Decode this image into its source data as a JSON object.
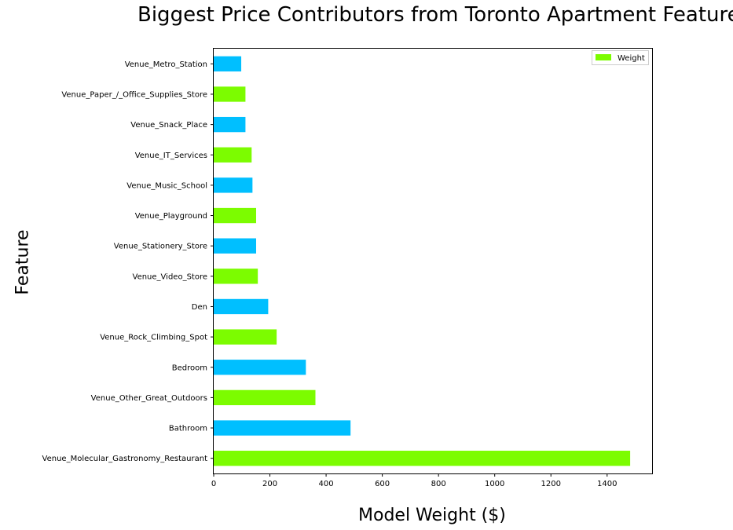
{
  "chart_data": {
    "type": "bar",
    "orientation": "horizontal",
    "title": "Biggest Price Contributors from Toronto Apartment Features",
    "xlabel": "Model Weight ($)",
    "ylabel": "Feature",
    "xlim": [
      0,
      1560
    ],
    "xticks": [
      0,
      200,
      400,
      600,
      800,
      1000,
      1200,
      1400
    ],
    "grid": false,
    "legend": {
      "placement": "top-right",
      "entries": [
        "Weight"
      ]
    },
    "colors": [
      "#7cfc00",
      "#00bfff"
    ],
    "categories": [
      "Venue_Molecular_Gastronomy_Restaurant",
      "Bathroom",
      "Venue_Other_Great_Outdoors",
      "Bedroom",
      "Venue_Rock_Climbing_Spot",
      "Den",
      "Venue_Video_Store",
      "Venue_Stationery_Store",
      "Venue_Playground",
      "Venue_Music_School",
      "Venue_IT_Services",
      "Venue_Snack_Place",
      "Venue_Paper_/_Office_Supplies_Store",
      "Venue_Metro_Station"
    ],
    "series": [
      {
        "name": "Weight",
        "values": [
          1482,
          487,
          362,
          328,
          224,
          194,
          157,
          151,
          151,
          138,
          135,
          113,
          113,
          98
        ]
      }
    ]
  }
}
